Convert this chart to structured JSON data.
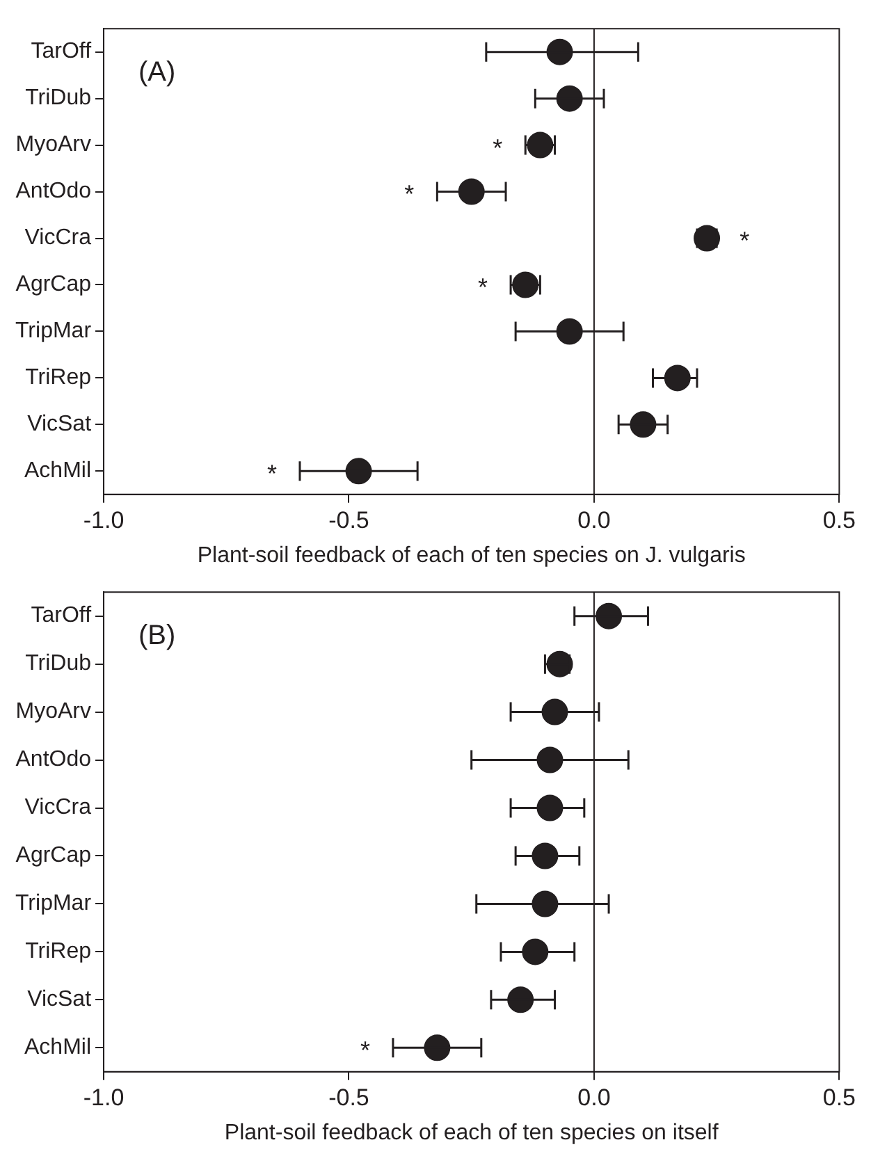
{
  "chart_data": [
    {
      "type": "scatter",
      "orientation": "horizontal",
      "xlabel": "Plant-soil feedback of each of ten species on J. vulgaris",
      "categories": [
        "TarOff",
        "TriDub",
        "MyoArv",
        "AntOdo",
        "VicCra",
        "AgrCap",
        "TripMar",
        "TriRep",
        "VicSat",
        "AchMil"
      ],
      "values": [
        -0.07,
        -0.05,
        -0.11,
        -0.25,
        0.23,
        -0.14,
        -0.05,
        0.17,
        0.1,
        -0.48
      ],
      "errors": [
        [
          -0.22,
          0.09
        ],
        [
          -0.12,
          0.02
        ],
        [
          -0.14,
          -0.08
        ],
        [
          -0.32,
          -0.18
        ],
        [
          0.21,
          0.25
        ],
        [
          -0.17,
          -0.11
        ],
        [
          -0.16,
          0.06
        ],
        [
          0.12,
          0.21
        ],
        [
          0.05,
          0.15
        ],
        [
          -0.6,
          -0.36
        ]
      ],
      "color": "#231f20",
      "marker": "circle",
      "xlim": [
        -1,
        0.5
      ],
      "xticks": [
        {
          "value": -1,
          "label": "-1.0"
        },
        {
          "value": -0.5,
          "label": "-0.5"
        },
        {
          "value": 0,
          "label": "0.0"
        },
        {
          "value": 0.5,
          "label": "0.5"
        }
      ],
      "grid": false,
      "legend": false,
      "ref_lines": [
        {
          "axis": "x",
          "value": 0,
          "color": "#231f20"
        }
      ],
      "annotations": [
        "(A)",
        {
          "text": "*",
          "x": -0.14,
          "y": "MyoArv"
        },
        {
          "text": "*",
          "x": -0.32,
          "y": "AntOdo"
        },
        {
          "text": "*",
          "x": 0.25,
          "y": "VicCra"
        },
        {
          "text": "*",
          "x": -0.17,
          "y": "AgrCap"
        },
        {
          "text": "*",
          "x": -0.6,
          "y": "AchMil"
        }
      ]
    },
    {
      "type": "scatter",
      "orientation": "horizontal",
      "xlabel": "Plant-soil feedback of each of ten species on itself",
      "categories": [
        "TarOff",
        "TriDub",
        "MyoArv",
        "AntOdo",
        "VicCra",
        "AgrCap",
        "TripMar",
        "TriRep",
        "VicSat",
        "AchMil"
      ],
      "values": [
        0.03,
        -0.07,
        -0.08,
        -0.09,
        -0.09,
        -0.1,
        -0.1,
        -0.12,
        -0.15,
        -0.32
      ],
      "errors": [
        [
          -0.04,
          0.11
        ],
        [
          -0.1,
          -0.05
        ],
        [
          -0.17,
          0.01
        ],
        [
          -0.25,
          0.07
        ],
        [
          -0.17,
          -0.02
        ],
        [
          -0.16,
          -0.03
        ],
        [
          -0.24,
          0.03
        ],
        [
          -0.19,
          -0.04
        ],
        [
          -0.21,
          -0.08
        ],
        [
          -0.41,
          -0.23
        ]
      ],
      "color": "#231f20",
      "marker": "circle",
      "xlim": [
        -1,
        0.5
      ],
      "xticks": [
        {
          "value": -1,
          "label": "-1.0"
        },
        {
          "value": -0.5,
          "label": "-0.5"
        },
        {
          "value": 0,
          "label": "0.0"
        },
        {
          "value": 0.5,
          "label": "0.5"
        }
      ],
      "grid": false,
      "legend": false,
      "ref_lines": [
        {
          "axis": "x",
          "value": 0,
          "color": "#231f20"
        }
      ],
      "annotations": [
        "(B)",
        {
          "text": "*",
          "x": -0.41,
          "y": "AchMil"
        }
      ]
    }
  ]
}
